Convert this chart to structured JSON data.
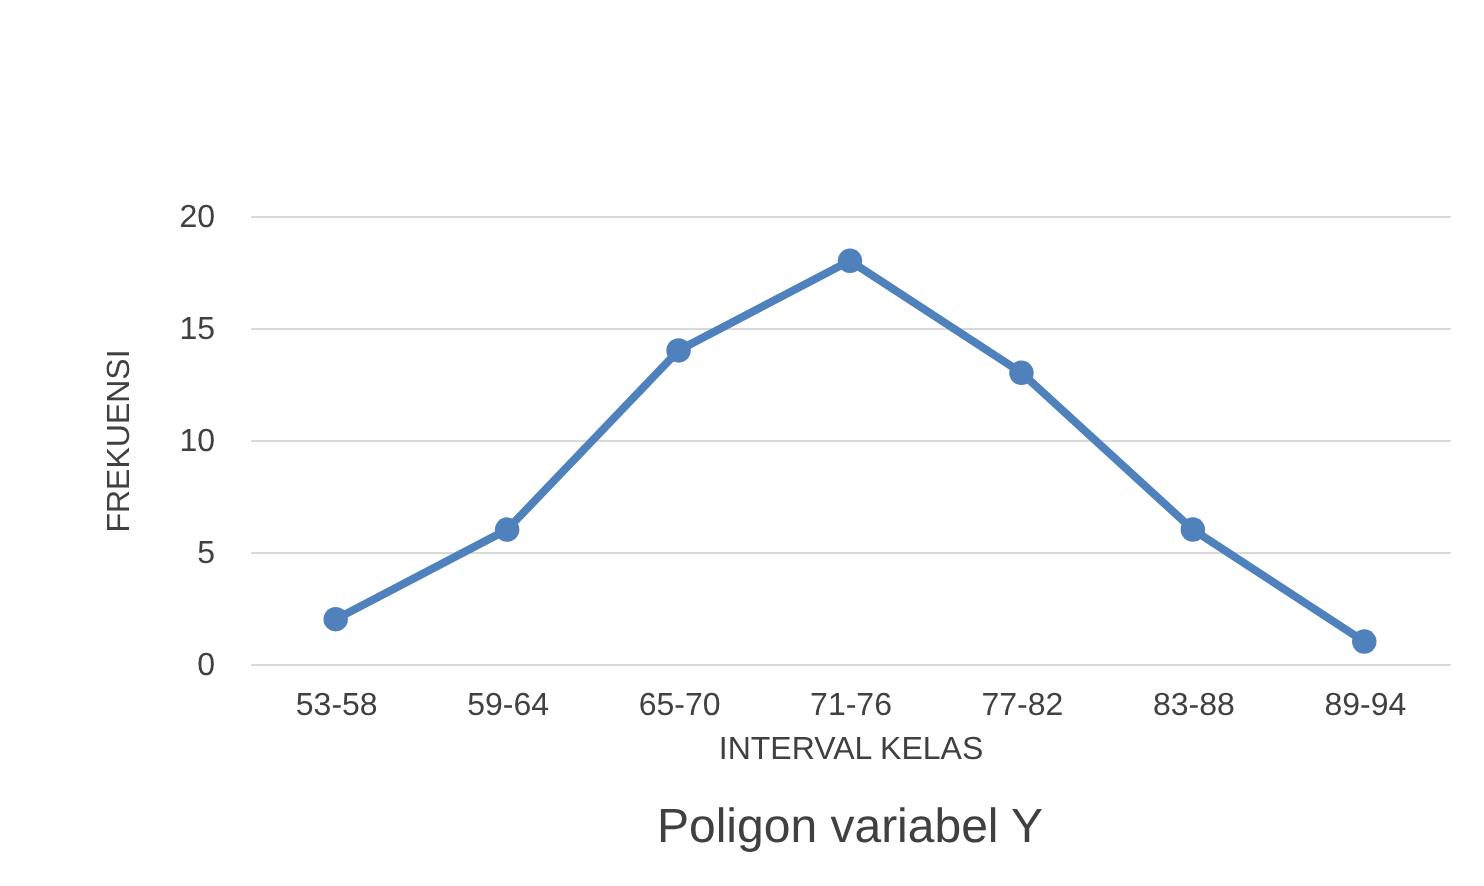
{
  "chart_data": {
    "type": "line",
    "title": "Poligon variabel Y",
    "xlabel": "INTERVAL KELAS",
    "ylabel": "FREKUENSI",
    "categories": [
      "53-58",
      "59-64",
      "65-70",
      "71-76",
      "77-82",
      "83-88",
      "89-94"
    ],
    "series": [
      {
        "color": "#4f81bd",
        "values": [
          2,
          6,
          14,
          18,
          13,
          6,
          1
        ]
      }
    ],
    "ylim": [
      0,
      20
    ],
    "yticks": [
      0,
      5,
      10,
      15,
      20
    ],
    "grid": "y",
    "marker": "circle"
  }
}
